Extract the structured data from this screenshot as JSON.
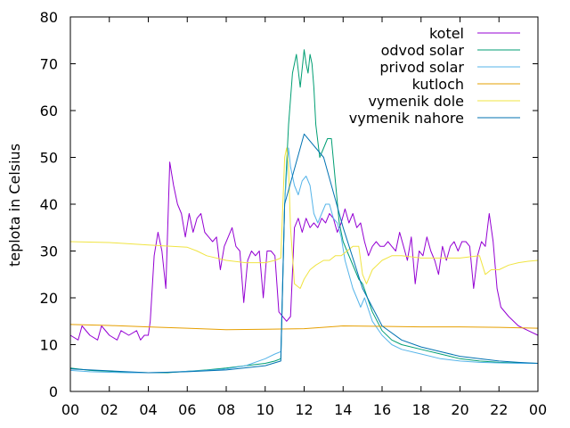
{
  "chart_data": {
    "type": "line",
    "ylabel": "teplota in Celsius",
    "xlabel": "",
    "ylim": [
      0,
      80
    ],
    "xlim": [
      0,
      24
    ],
    "x_ticks": [
      "00",
      "02",
      "04",
      "06",
      "08",
      "10",
      "12",
      "14",
      "16",
      "18",
      "20",
      "22",
      "00"
    ],
    "y_ticks": [
      "0",
      "10",
      "20",
      "30",
      "40",
      "50",
      "60",
      "70",
      "80"
    ],
    "legend_position": "top-right",
    "series": [
      {
        "name": "kotel",
        "color": "#9400d3",
        "x": [
          0,
          0.4,
          0.6,
          1,
          1.4,
          1.6,
          2,
          2.4,
          2.6,
          3,
          3.4,
          3.6,
          3.8,
          4,
          4.1,
          4.3,
          4.5,
          4.7,
          4.9,
          5.1,
          5.3,
          5.5,
          5.7,
          5.9,
          6.1,
          6.3,
          6.5,
          6.7,
          6.9,
          7.1,
          7.3,
          7.5,
          7.7,
          7.9,
          8.1,
          8.3,
          8.5,
          8.7,
          8.9,
          9.1,
          9.3,
          9.5,
          9.7,
          9.9,
          10.1,
          10.3,
          10.5,
          10.7,
          10.9,
          11.1,
          11.3,
          11.5,
          11.7,
          11.9,
          12.1,
          12.3,
          12.5,
          12.7,
          12.9,
          13.1,
          13.3,
          13.5,
          13.7,
          13.9,
          14.1,
          14.3,
          14.5,
          14.7,
          14.9,
          15.1,
          15.3,
          15.5,
          15.7,
          15.9,
          16.1,
          16.3,
          16.5,
          16.7,
          16.9,
          17.1,
          17.3,
          17.5,
          17.7,
          17.9,
          18.1,
          18.3,
          18.5,
          18.7,
          18.9,
          19.1,
          19.3,
          19.5,
          19.7,
          19.9,
          20.1,
          20.3,
          20.5,
          20.7,
          20.9,
          21.1,
          21.3,
          21.5,
          21.7,
          21.9,
          22.1,
          22.5,
          23,
          23.5,
          24
        ],
        "y": [
          12,
          11,
          14,
          12,
          11,
          14,
          12,
          11,
          13,
          12,
          13,
          11,
          12,
          12,
          15,
          29,
          34,
          30,
          22,
          49,
          44,
          40,
          38,
          33,
          38,
          34,
          37,
          38,
          34,
          33,
          32,
          33,
          26,
          31,
          33,
          35,
          31,
          30,
          19,
          28,
          30,
          29,
          30,
          20,
          30,
          30,
          29,
          17,
          16,
          15,
          16,
          35,
          37,
          34,
          37,
          35,
          36,
          35,
          37,
          36,
          38,
          37,
          34,
          36,
          39,
          36,
          38,
          35,
          36,
          32,
          29,
          31,
          32,
          31,
          31,
          32,
          31,
          30,
          34,
          31,
          28,
          33,
          23,
          30,
          29,
          33,
          30,
          28,
          25,
          31,
          28,
          31,
          32,
          30,
          32,
          32,
          31,
          22,
          29,
          32,
          31,
          38,
          32,
          22,
          18,
          16,
          14,
          13,
          12
        ]
      },
      {
        "name": "odvod solar",
        "color": "#009e73",
        "x": [
          0,
          1,
          2,
          3,
          4,
          5,
          6,
          7,
          8,
          9,
          10,
          10.5,
          10.8,
          11,
          11.2,
          11.4,
          11.6,
          11.8,
          12,
          12.1,
          12.2,
          12.3,
          12.4,
          12.5,
          12.6,
          12.8,
          13,
          13.2,
          13.4,
          13.6,
          13.8,
          14,
          14.2,
          14.4,
          14.6,
          14.8,
          15,
          15.5,
          16,
          16.5,
          17,
          18,
          19,
          20,
          21,
          22,
          23,
          24
        ],
        "y": [
          5,
          4.5,
          4.3,
          4.1,
          4,
          4,
          4.3,
          4.6,
          5,
          5.5,
          6,
          6.5,
          7,
          40,
          57,
          68,
          72,
          65,
          73,
          70,
          68,
          72,
          70,
          65,
          57,
          50,
          52,
          54,
          54,
          45,
          36,
          32,
          30,
          28,
          26,
          24,
          23,
          17,
          13,
          11,
          10,
          9,
          8,
          7,
          6.5,
          6.2,
          6.1,
          6
        ]
      },
      {
        "name": "privod solar",
        "color": "#56b4e9",
        "x": [
          0,
          1,
          2,
          3,
          4,
          5,
          6,
          7,
          8,
          9,
          10,
          10.5,
          10.8,
          11,
          11.2,
          11.3,
          11.5,
          11.7,
          11.9,
          12.1,
          12.3,
          12.5,
          12.7,
          12.9,
          13.1,
          13.3,
          13.5,
          13.7,
          13.9,
          14.1,
          14.3,
          14.5,
          14.7,
          14.9,
          15.1,
          15.5,
          16,
          16.5,
          17,
          18,
          19,
          20,
          21,
          22,
          23,
          24
        ],
        "y": [
          4.5,
          4.2,
          4.1,
          4,
          4,
          4.1,
          4.3,
          4.5,
          4.8,
          5.5,
          7,
          8,
          8.5,
          40,
          52,
          48,
          44,
          42,
          45,
          46,
          44,
          38,
          36,
          38,
          40,
          40,
          37,
          36,
          33,
          28,
          25,
          22,
          20,
          18,
          20,
          15,
          12,
          10,
          9,
          8,
          7,
          6.5,
          6.2,
          6.1,
          6,
          6
        ]
      },
      {
        "name": "kutloch",
        "color": "#e69f00",
        "x": [
          0,
          2,
          4,
          6,
          8,
          10,
          12,
          14,
          16,
          18,
          20,
          22,
          24
        ],
        "y": [
          14.3,
          14.1,
          13.8,
          13.5,
          13.2,
          13.3,
          13.4,
          14,
          13.9,
          13.8,
          13.8,
          13.7,
          13.5
        ]
      },
      {
        "name": "vymenik dole",
        "color": "#f0e442",
        "x": [
          0,
          2,
          4,
          6,
          6.5,
          7,
          8,
          9,
          10,
          10.5,
          10.8,
          11,
          11.1,
          11.2,
          11.3,
          11.5,
          11.8,
          12,
          12.3,
          12.6,
          13,
          13.3,
          13.6,
          13.9,
          14.2,
          14.5,
          14.8,
          15,
          15.2,
          15.5,
          16,
          16.5,
          17,
          18,
          19,
          20,
          21,
          21.3,
          21.6,
          22,
          22.5,
          23,
          23.5,
          24
        ],
        "y": [
          32,
          31.8,
          31.3,
          30.8,
          30,
          29,
          28,
          27.5,
          27.5,
          28,
          28.5,
          50,
          52,
          48,
          35,
          23,
          22,
          24,
          26,
          27,
          28,
          28,
          29,
          29,
          30,
          31,
          31,
          25,
          23,
          26,
          28,
          29,
          29,
          28.5,
          28.5,
          28.5,
          29,
          25,
          26,
          26,
          27,
          27.5,
          27.8,
          28
        ]
      },
      {
        "name": "vymenik nahore",
        "color": "#0072b2",
        "x": [
          0,
          2,
          4,
          6,
          8,
          10,
          10.8,
          11,
          12,
          13,
          14,
          15,
          16,
          17,
          18,
          19,
          20,
          21,
          22,
          23,
          24
        ],
        "y": [
          4.8,
          4.4,
          4.0,
          4.2,
          4.6,
          5.5,
          6.5,
          40,
          55,
          50,
          35,
          22,
          14,
          11,
          9.5,
          8.5,
          7.5,
          7,
          6.5,
          6.2,
          6.0
        ]
      }
    ]
  }
}
